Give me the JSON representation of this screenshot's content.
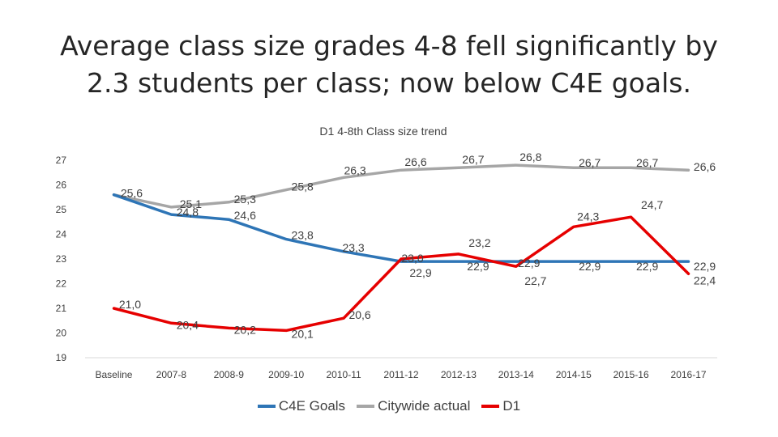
{
  "headline": {
    "line1": "Average class size grades 4-8 fell significantly by",
    "line2": "2.3 students per class; now below C4E goals."
  },
  "chart_data": {
    "type": "line",
    "title": "D1 4-8th Class size trend",
    "categories": [
      "Baseline",
      "2007-8",
      "2008-9",
      "2009-10",
      "2010-11",
      "2011-12",
      "2012-13",
      "2013-14",
      "2014-15",
      "2015-16",
      "2016-17"
    ],
    "ylim": [
      19,
      27
    ],
    "yticks": [
      "19",
      "20",
      "21",
      "22",
      "23",
      "24",
      "25",
      "26",
      "27"
    ],
    "xlabel": "",
    "ylabel": "",
    "grid": false,
    "legend_position": "bottom",
    "series": [
      {
        "name": "C4E Goals",
        "color": "#2e75b6",
        "values": [
          25.6,
          24.8,
          24.6,
          23.8,
          23.3,
          22.9,
          22.9,
          22.9,
          22.9,
          22.9,
          22.9
        ],
        "labels": [
          "",
          "24,8",
          "24,6",
          "23,8",
          "23,3",
          "",
          "",
          "",
          "22,9",
          "22,9",
          "22,9"
        ]
      },
      {
        "name": "Citywide actual",
        "color": "#a6a6a6",
        "values": [
          25.6,
          25.1,
          25.3,
          25.8,
          26.3,
          26.6,
          26.7,
          26.8,
          26.7,
          26.7,
          26.6
        ],
        "labels": [
          "25,6",
          "25,1",
          "25,3",
          "25,8",
          "26,3",
          "26,6",
          "26,7",
          "26,8",
          "26,7",
          "26,7",
          "26,6"
        ]
      },
      {
        "name": "D1",
        "color": "#e60000",
        "values": [
          21.0,
          20.4,
          20.2,
          20.1,
          20.6,
          23.0,
          23.2,
          22.7,
          24.3,
          24.7,
          22.4
        ],
        "labels": [
          "21,0",
          "20,4",
          "20,2",
          "20,1",
          "20,6",
          "23,0",
          "23,2",
          "22,7",
          "24,3",
          "24,7",
          "22,4"
        ]
      }
    ],
    "extra_labels": [
      "22,9",
      "22,9",
      "22,9"
    ]
  }
}
